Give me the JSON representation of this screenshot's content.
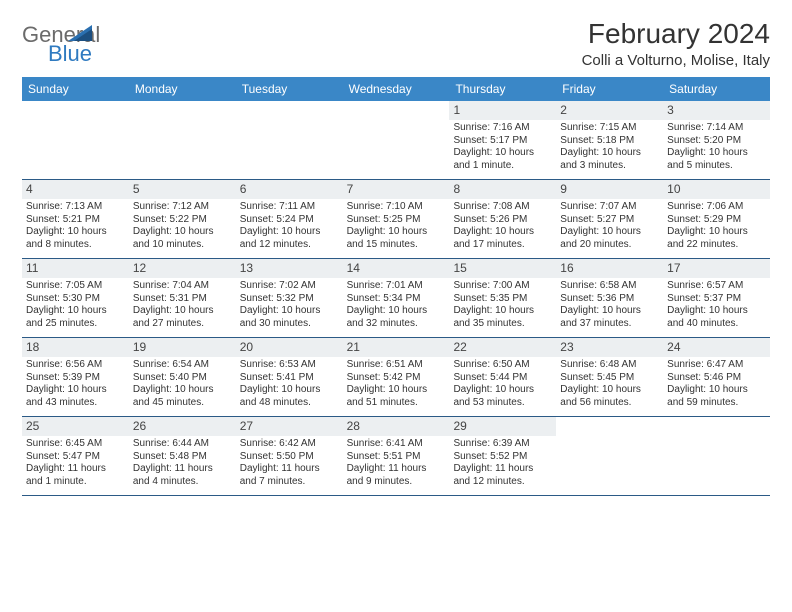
{
  "logo": {
    "general": "General",
    "blue": "Blue"
  },
  "title": "February 2024",
  "subtitle": "Colli a Volturno, Molise, Italy",
  "colors": {
    "header_bg": "#3a87c7",
    "header_text": "#ffffff",
    "daynum_bg": "#eceff1",
    "border": "#2b5a86",
    "logo_gray": "#6b6b6b",
    "logo_blue": "#2f7ac0",
    "text": "#333333"
  },
  "day_headers": [
    "Sunday",
    "Monday",
    "Tuesday",
    "Wednesday",
    "Thursday",
    "Friday",
    "Saturday"
  ],
  "weeks": [
    [
      {
        "n": "",
        "sr": "",
        "ss": "",
        "dl": ""
      },
      {
        "n": "",
        "sr": "",
        "ss": "",
        "dl": ""
      },
      {
        "n": "",
        "sr": "",
        "ss": "",
        "dl": ""
      },
      {
        "n": "",
        "sr": "",
        "ss": "",
        "dl": ""
      },
      {
        "n": "1",
        "sr": "Sunrise: 7:16 AM",
        "ss": "Sunset: 5:17 PM",
        "dl": "Daylight: 10 hours and 1 minute."
      },
      {
        "n": "2",
        "sr": "Sunrise: 7:15 AM",
        "ss": "Sunset: 5:18 PM",
        "dl": "Daylight: 10 hours and 3 minutes."
      },
      {
        "n": "3",
        "sr": "Sunrise: 7:14 AM",
        "ss": "Sunset: 5:20 PM",
        "dl": "Daylight: 10 hours and 5 minutes."
      }
    ],
    [
      {
        "n": "4",
        "sr": "Sunrise: 7:13 AM",
        "ss": "Sunset: 5:21 PM",
        "dl": "Daylight: 10 hours and 8 minutes."
      },
      {
        "n": "5",
        "sr": "Sunrise: 7:12 AM",
        "ss": "Sunset: 5:22 PM",
        "dl": "Daylight: 10 hours and 10 minutes."
      },
      {
        "n": "6",
        "sr": "Sunrise: 7:11 AM",
        "ss": "Sunset: 5:24 PM",
        "dl": "Daylight: 10 hours and 12 minutes."
      },
      {
        "n": "7",
        "sr": "Sunrise: 7:10 AM",
        "ss": "Sunset: 5:25 PM",
        "dl": "Daylight: 10 hours and 15 minutes."
      },
      {
        "n": "8",
        "sr": "Sunrise: 7:08 AM",
        "ss": "Sunset: 5:26 PM",
        "dl": "Daylight: 10 hours and 17 minutes."
      },
      {
        "n": "9",
        "sr": "Sunrise: 7:07 AM",
        "ss": "Sunset: 5:27 PM",
        "dl": "Daylight: 10 hours and 20 minutes."
      },
      {
        "n": "10",
        "sr": "Sunrise: 7:06 AM",
        "ss": "Sunset: 5:29 PM",
        "dl": "Daylight: 10 hours and 22 minutes."
      }
    ],
    [
      {
        "n": "11",
        "sr": "Sunrise: 7:05 AM",
        "ss": "Sunset: 5:30 PM",
        "dl": "Daylight: 10 hours and 25 minutes."
      },
      {
        "n": "12",
        "sr": "Sunrise: 7:04 AM",
        "ss": "Sunset: 5:31 PM",
        "dl": "Daylight: 10 hours and 27 minutes."
      },
      {
        "n": "13",
        "sr": "Sunrise: 7:02 AM",
        "ss": "Sunset: 5:32 PM",
        "dl": "Daylight: 10 hours and 30 minutes."
      },
      {
        "n": "14",
        "sr": "Sunrise: 7:01 AM",
        "ss": "Sunset: 5:34 PM",
        "dl": "Daylight: 10 hours and 32 minutes."
      },
      {
        "n": "15",
        "sr": "Sunrise: 7:00 AM",
        "ss": "Sunset: 5:35 PM",
        "dl": "Daylight: 10 hours and 35 minutes."
      },
      {
        "n": "16",
        "sr": "Sunrise: 6:58 AM",
        "ss": "Sunset: 5:36 PM",
        "dl": "Daylight: 10 hours and 37 minutes."
      },
      {
        "n": "17",
        "sr": "Sunrise: 6:57 AM",
        "ss": "Sunset: 5:37 PM",
        "dl": "Daylight: 10 hours and 40 minutes."
      }
    ],
    [
      {
        "n": "18",
        "sr": "Sunrise: 6:56 AM",
        "ss": "Sunset: 5:39 PM",
        "dl": "Daylight: 10 hours and 43 minutes."
      },
      {
        "n": "19",
        "sr": "Sunrise: 6:54 AM",
        "ss": "Sunset: 5:40 PM",
        "dl": "Daylight: 10 hours and 45 minutes."
      },
      {
        "n": "20",
        "sr": "Sunrise: 6:53 AM",
        "ss": "Sunset: 5:41 PM",
        "dl": "Daylight: 10 hours and 48 minutes."
      },
      {
        "n": "21",
        "sr": "Sunrise: 6:51 AM",
        "ss": "Sunset: 5:42 PM",
        "dl": "Daylight: 10 hours and 51 minutes."
      },
      {
        "n": "22",
        "sr": "Sunrise: 6:50 AM",
        "ss": "Sunset: 5:44 PM",
        "dl": "Daylight: 10 hours and 53 minutes."
      },
      {
        "n": "23",
        "sr": "Sunrise: 6:48 AM",
        "ss": "Sunset: 5:45 PM",
        "dl": "Daylight: 10 hours and 56 minutes."
      },
      {
        "n": "24",
        "sr": "Sunrise: 6:47 AM",
        "ss": "Sunset: 5:46 PM",
        "dl": "Daylight: 10 hours and 59 minutes."
      }
    ],
    [
      {
        "n": "25",
        "sr": "Sunrise: 6:45 AM",
        "ss": "Sunset: 5:47 PM",
        "dl": "Daylight: 11 hours and 1 minute."
      },
      {
        "n": "26",
        "sr": "Sunrise: 6:44 AM",
        "ss": "Sunset: 5:48 PM",
        "dl": "Daylight: 11 hours and 4 minutes."
      },
      {
        "n": "27",
        "sr": "Sunrise: 6:42 AM",
        "ss": "Sunset: 5:50 PM",
        "dl": "Daylight: 11 hours and 7 minutes."
      },
      {
        "n": "28",
        "sr": "Sunrise: 6:41 AM",
        "ss": "Sunset: 5:51 PM",
        "dl": "Daylight: 11 hours and 9 minutes."
      },
      {
        "n": "29",
        "sr": "Sunrise: 6:39 AM",
        "ss": "Sunset: 5:52 PM",
        "dl": "Daylight: 11 hours and 12 minutes."
      },
      {
        "n": "",
        "sr": "",
        "ss": "",
        "dl": ""
      },
      {
        "n": "",
        "sr": "",
        "ss": "",
        "dl": ""
      }
    ]
  ]
}
